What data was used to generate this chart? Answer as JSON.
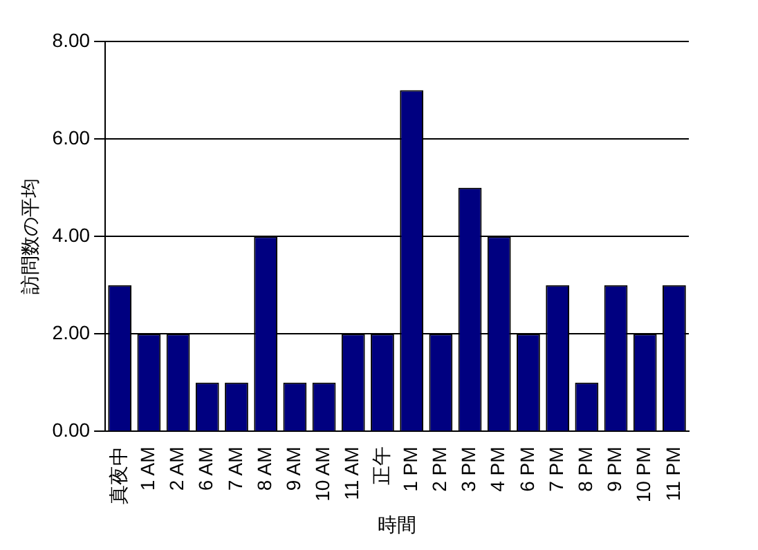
{
  "chart_data": {
    "type": "bar",
    "xlabel": "時間",
    "ylabel": "訪問数の平均",
    "categories": [
      "真夜中",
      "1 AM",
      "2 AM",
      "6 AM",
      "7 AM",
      "8 AM",
      "9 AM",
      "10 AM",
      "11 AM",
      "正午",
      "1 PM",
      "2 PM",
      "3 PM",
      "4 PM",
      "6 PM",
      "7 PM",
      "8 PM",
      "9 PM",
      "10 PM",
      "11 PM"
    ],
    "values": [
      3,
      2,
      2,
      1,
      1,
      4,
      1,
      1,
      2,
      2,
      7,
      2,
      5,
      4,
      2,
      3,
      1,
      3,
      2,
      3
    ],
    "color": "#000080",
    "ylim": [
      0,
      8
    ],
    "yticks": [
      {
        "value": 0,
        "label": "0.00"
      },
      {
        "value": 2,
        "label": "2.00"
      },
      {
        "value": 4,
        "label": "4.00"
      },
      {
        "value": 6,
        "label": "6.00"
      },
      {
        "value": 8,
        "label": "8.00"
      }
    ],
    "grid": "y",
    "legend": false
  }
}
